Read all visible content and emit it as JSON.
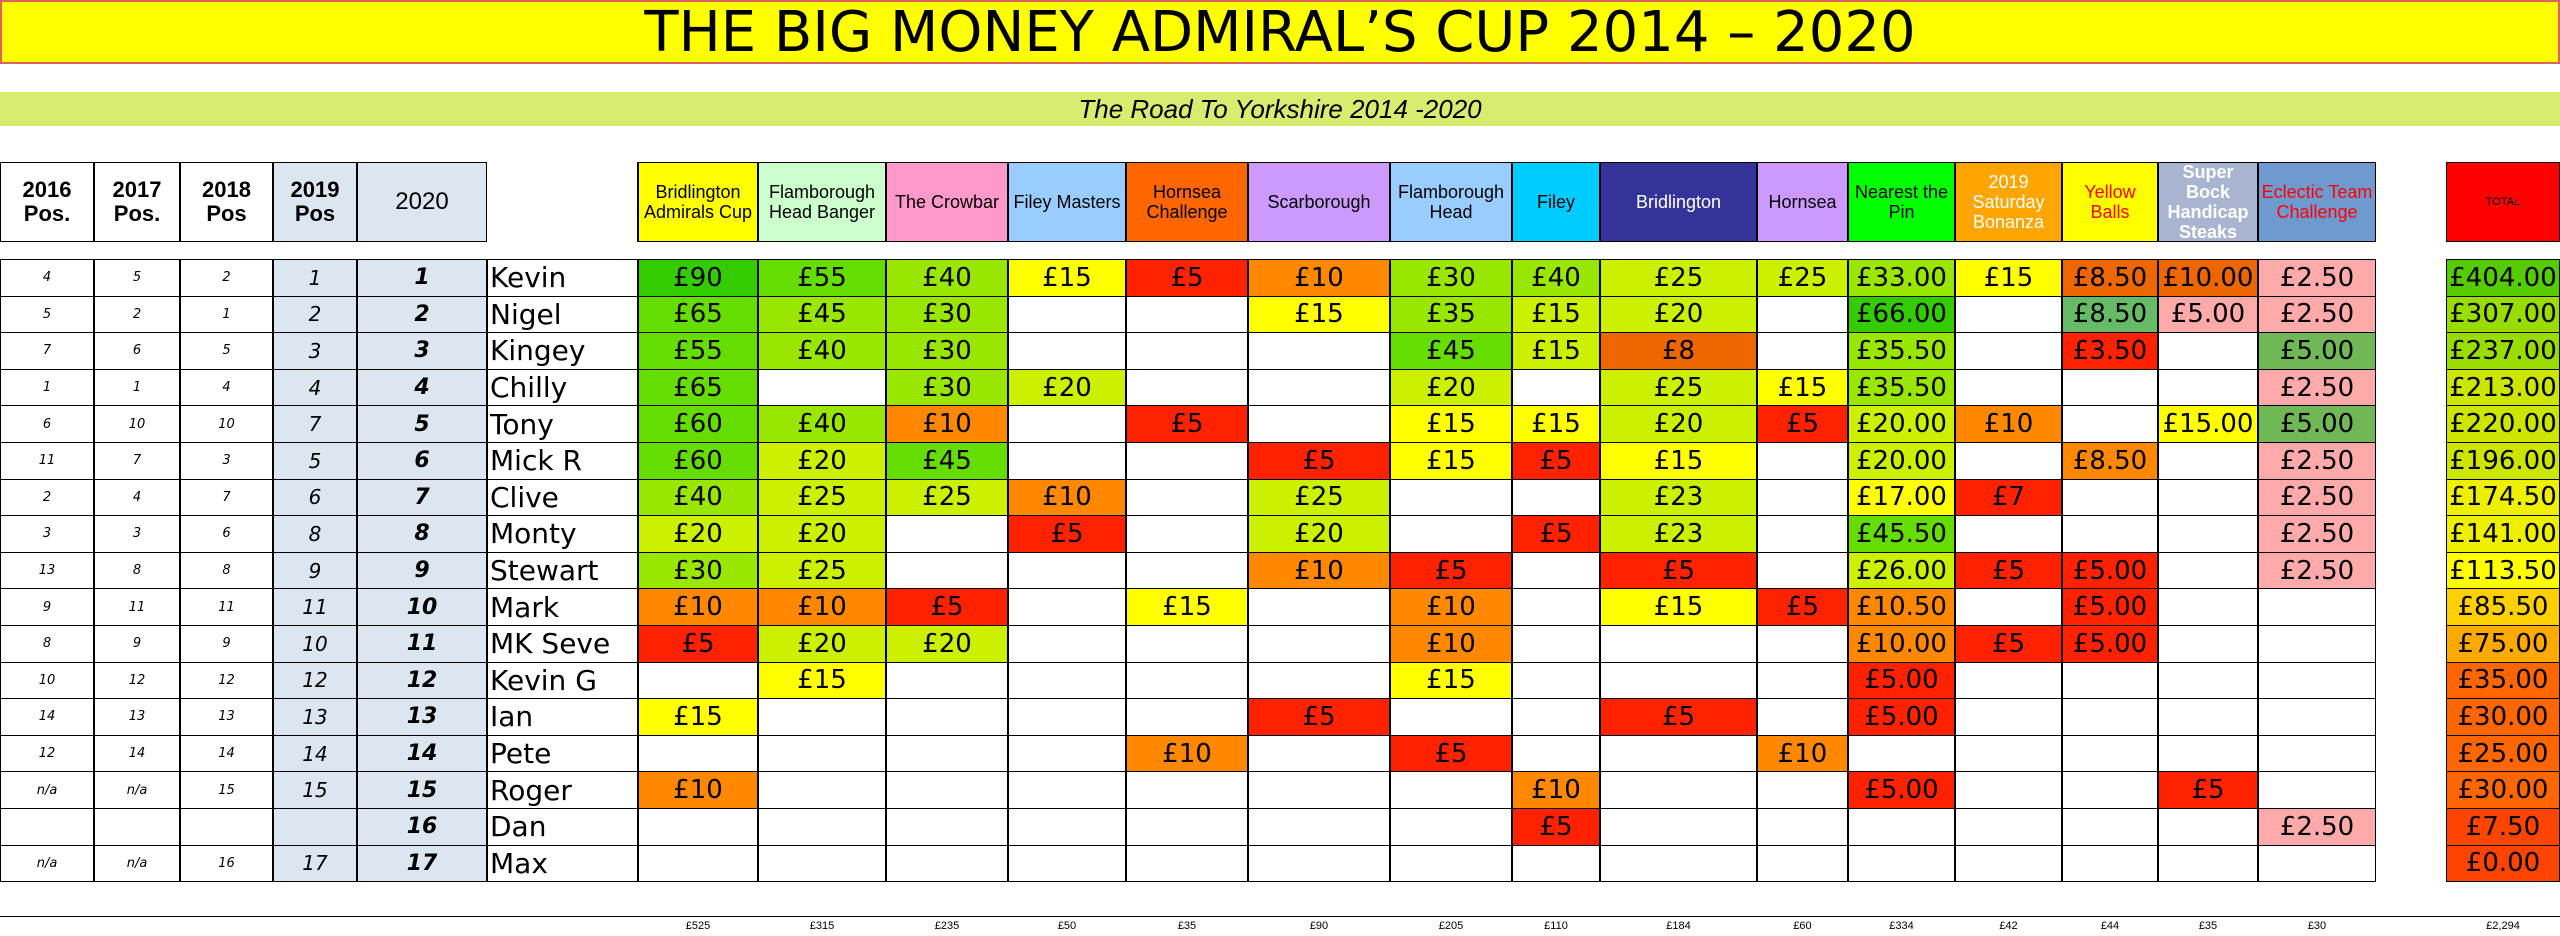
{
  "title": "THE BIG MONEY ADMIRAL’S CUP  2014 – 2020",
  "subtitle": "The Road To Yorkshire 2014 -2020",
  "pos_headers": [
    "2016 Pos.",
    "2017 Pos.",
    "2018 Pos",
    "2019 Pos",
    "2020"
  ],
  "events": [
    {
      "label": "Bridlington Admirals Cup",
      "bg": "#ffff00",
      "fg": "#000000"
    },
    {
      "label": "Flamborough Head Banger",
      "bg": "#ccffcc",
      "fg": "#000000"
    },
    {
      "label": "The Crowbar",
      "bg": "#ff99cc",
      "fg": "#000000"
    },
    {
      "label": "Filey Masters",
      "bg": "#99ccff",
      "fg": "#000000"
    },
    {
      "label": "Hornsea Challenge",
      "bg": "#ff6600",
      "fg": "#000000"
    },
    {
      "label": "Scarborough",
      "bg": "#cc99ff",
      "fg": "#000000"
    },
    {
      "label": "Flamborough Head",
      "bg": "#99ccff",
      "fg": "#000000"
    },
    {
      "label": "Filey",
      "bg": "#00ccff",
      "fg": "#000000"
    },
    {
      "label": "Bridlington",
      "bg": "#333399",
      "fg": "#ffffff"
    },
    {
      "label": "Hornsea",
      "bg": "#cc99ff",
      "fg": "#000000"
    },
    {
      "label": "Nearest the Pin",
      "bg": "#00ff00",
      "fg": "#000000"
    },
    {
      "label": "2019 Saturday Bonanza",
      "bg": "#ffa500",
      "fg": "#ffffff"
    },
    {
      "label": "Yellow Balls",
      "bg": "#ffff00",
      "fg": "#ff0000"
    },
    {
      "label": "Super Bock Handicap Steaks",
      "bg": "#a8b4d0",
      "fg": "#ffffff"
    },
    {
      "label": "Eclectic Team Challenge",
      "bg": "#6e9ad0",
      "fg": "#ff0000"
    }
  ],
  "total_label": "TOTAL",
  "total_header_bg": "#ff0000",
  "colors": {
    "g1": "#33cc00",
    "g2": "#66dd00",
    "g3": "#99e600",
    "g4": "#ccf000",
    "y": "#ffff00",
    "o": "#ff8800",
    "r": "#ff2200",
    "pk": "#ffaaaa",
    "mg": "#66bb66",
    "lg": "#70b855",
    "bo": "#ee6600",
    "t1": "#55cc00",
    "t2": "#99dd00",
    "t3": "#cce600",
    "t4": "#eef000",
    "t5": "#ffd000",
    "t6": "#ffaa00",
    "t7": "#ff8800",
    "t8": "#ff6600",
    "t9": "#ff4400",
    "pos_bg": "#dce6f0"
  },
  "rows": [
    {
      "p16": "4",
      "p17": "5",
      "p18": "2",
      "p19": "1",
      "cur": "1",
      "name": "Kevin",
      "cells": [
        [
          "£90",
          "g1"
        ],
        [
          "£55",
          "g2"
        ],
        [
          "£40",
          "g3"
        ],
        [
          "£15",
          "y"
        ],
        [
          "£5",
          "r"
        ],
        [
          "£10",
          "o"
        ],
        [
          "£30",
          "g3"
        ],
        [
          "£40",
          "g3"
        ],
        [
          "£25",
          "g4"
        ],
        [
          "£25",
          "g4"
        ],
        [
          "£33.00",
          "g3"
        ],
        [
          "£15",
          "y"
        ],
        [
          "£8.50",
          "bo"
        ],
        [
          "£10.00",
          "bo"
        ],
        [
          "£2.50",
          "pk"
        ]
      ],
      "total": [
        "£404.00",
        "t1"
      ]
    },
    {
      "p16": "5",
      "p17": "2",
      "p18": "1",
      "p19": "2",
      "cur": "2",
      "name": "Nigel",
      "cells": [
        [
          "£65",
          "g2"
        ],
        [
          "£45",
          "g3"
        ],
        [
          "£30",
          "g3"
        ],
        [
          "",
          ""
        ],
        [
          "",
          ""
        ],
        [
          "£15",
          "y"
        ],
        [
          "£35",
          "g3"
        ],
        [
          "£15",
          "g4"
        ],
        [
          "£20",
          "g4"
        ],
        [
          "",
          ""
        ],
        [
          "£66.00",
          "g1"
        ],
        [
          "",
          ""
        ],
        [
          "£8.50",
          "mg"
        ],
        [
          "£5.00",
          "pk"
        ],
        [
          "£2.50",
          "pk"
        ]
      ],
      "total": [
        "£307.00",
        "t2"
      ]
    },
    {
      "p16": "7",
      "p17": "6",
      "p18": "5",
      "p19": "3",
      "cur": "3",
      "name": "Kingey",
      "cells": [
        [
          "£55",
          "g2"
        ],
        [
          "£40",
          "g3"
        ],
        [
          "£30",
          "g3"
        ],
        [
          "",
          ""
        ],
        [
          "",
          ""
        ],
        [
          "",
          ""
        ],
        [
          "£45",
          "g2"
        ],
        [
          "£15",
          "g4"
        ],
        [
          "£8",
          "bo"
        ],
        [
          "",
          ""
        ],
        [
          "£35.50",
          "g3"
        ],
        [
          "",
          ""
        ],
        [
          "£3.50",
          "r"
        ],
        [
          "",
          ""
        ],
        [
          "£5.00",
          "lg"
        ]
      ],
      "total": [
        "£237.00",
        "t2"
      ]
    },
    {
      "p16": "1",
      "p17": "1",
      "p18": "4",
      "p19": "4",
      "cur": "4",
      "name": "Chilly",
      "cells": [
        [
          "£65",
          "g2"
        ],
        [
          "",
          ""
        ],
        [
          "£30",
          "g3"
        ],
        [
          "£20",
          "g4"
        ],
        [
          "",
          ""
        ],
        [
          "",
          ""
        ],
        [
          "£20",
          "g4"
        ],
        [
          "",
          ""
        ],
        [
          "£25",
          "g4"
        ],
        [
          "£15",
          "y"
        ],
        [
          "£35.50",
          "g3"
        ],
        [
          "",
          ""
        ],
        [
          "",
          ""
        ],
        [
          "",
          ""
        ],
        [
          "£2.50",
          "pk"
        ]
      ],
      "total": [
        "£213.00",
        "t3"
      ]
    },
    {
      "p16": "6",
      "p17": "10",
      "p18": "10",
      "p19": "7",
      "cur": "5",
      "name": "Tony",
      "cells": [
        [
          "£60",
          "g2"
        ],
        [
          "£40",
          "g3"
        ],
        [
          "£10",
          "o"
        ],
        [
          "",
          ""
        ],
        [
          "£5",
          "r"
        ],
        [
          "",
          ""
        ],
        [
          "£15",
          "y"
        ],
        [
          "£15",
          "y"
        ],
        [
          "£20",
          "g4"
        ],
        [
          "£5",
          "r"
        ],
        [
          "£20.00",
          "g4"
        ],
        [
          "£10",
          "o"
        ],
        [
          "",
          ""
        ],
        [
          "£15.00",
          "y"
        ],
        [
          "£5.00",
          "lg"
        ]
      ],
      "total": [
        "£220.00",
        "t3"
      ]
    },
    {
      "p16": "11",
      "p17": "7",
      "p18": "3",
      "p19": "5",
      "cur": "6",
      "name": "Mick R",
      "cells": [
        [
          "£60",
          "g2"
        ],
        [
          "£20",
          "g4"
        ],
        [
          "£45",
          "g2"
        ],
        [
          "",
          ""
        ],
        [
          "",
          ""
        ],
        [
          "£5",
          "r"
        ],
        [
          "£15",
          "y"
        ],
        [
          "£5",
          "r"
        ],
        [
          "£15",
          "y"
        ],
        [
          "",
          ""
        ],
        [
          "£20.00",
          "g4"
        ],
        [
          "",
          ""
        ],
        [
          "£8.50",
          "o"
        ],
        [
          "",
          ""
        ],
        [
          "£2.50",
          "pk"
        ]
      ],
      "total": [
        "£196.00",
        "t3"
      ]
    },
    {
      "p16": "2",
      "p17": "4",
      "p18": "7",
      "p19": "6",
      "cur": "7",
      "name": "Clive",
      "cells": [
        [
          "£40",
          "g3"
        ],
        [
          "£25",
          "g4"
        ],
        [
          "£25",
          "g4"
        ],
        [
          "£10",
          "o"
        ],
        [
          "",
          ""
        ],
        [
          "£25",
          "g4"
        ],
        [
          "",
          ""
        ],
        [
          "",
          ""
        ],
        [
          "£23",
          "g4"
        ],
        [
          "",
          ""
        ],
        [
          "£17.00",
          "y"
        ],
        [
          "£7",
          "r"
        ],
        [
          "",
          ""
        ],
        [
          "",
          ""
        ],
        [
          "£2.50",
          "pk"
        ]
      ],
      "total": [
        "£174.50",
        "t4"
      ]
    },
    {
      "p16": "3",
      "p17": "3",
      "p18": "6",
      "p19": "8",
      "cur": "8",
      "name": "Monty",
      "cells": [
        [
          "£20",
          "g4"
        ],
        [
          "£20",
          "g4"
        ],
        [
          "",
          ""
        ],
        [
          "£5",
          "r"
        ],
        [
          "",
          ""
        ],
        [
          "£20",
          "g4"
        ],
        [
          "",
          ""
        ],
        [
          "£5",
          "r"
        ],
        [
          "£23",
          "g4"
        ],
        [
          "",
          ""
        ],
        [
          "£45.50",
          "g2"
        ],
        [
          "",
          ""
        ],
        [
          "",
          ""
        ],
        [
          "",
          ""
        ],
        [
          "£2.50",
          "pk"
        ]
      ],
      "total": [
        "£141.00",
        "t4"
      ]
    },
    {
      "p16": "13",
      "p17": "8",
      "p18": "8",
      "p19": "9",
      "cur": "9",
      "name": "Stewart",
      "cells": [
        [
          "£30",
          "g3"
        ],
        [
          "£25",
          "g4"
        ],
        [
          "",
          ""
        ],
        [
          "",
          ""
        ],
        [
          "",
          ""
        ],
        [
          "£10",
          "o"
        ],
        [
          "£5",
          "r"
        ],
        [
          "",
          ""
        ],
        [
          "£5",
          "r"
        ],
        [
          "",
          ""
        ],
        [
          "£26.00",
          "g4"
        ],
        [
          "£5",
          "r"
        ],
        [
          "£5.00",
          "r"
        ],
        [
          "",
          ""
        ],
        [
          "£2.50",
          "pk"
        ]
      ],
      "total": [
        "£113.50",
        "y"
      ]
    },
    {
      "p16": "9",
      "p17": "11",
      "p18": "11",
      "p19": "11",
      "cur": "10",
      "name": "Mark",
      "cells": [
        [
          "£10",
          "o"
        ],
        [
          "£10",
          "o"
        ],
        [
          "£5",
          "r"
        ],
        [
          "",
          ""
        ],
        [
          "£15",
          "y"
        ],
        [
          "",
          ""
        ],
        [
          "£10",
          "o"
        ],
        [
          "",
          ""
        ],
        [
          "£15",
          "y"
        ],
        [
          "£5",
          "r"
        ],
        [
          "£10.50",
          "o"
        ],
        [
          "",
          ""
        ],
        [
          "£5.00",
          "r"
        ],
        [
          "",
          ""
        ],
        [
          "",
          ""
        ]
      ],
      "total": [
        "£85.50",
        "t5"
      ]
    },
    {
      "p16": "8",
      "p17": "9",
      "p18": "9",
      "p19": "10",
      "cur": "11",
      "name": "MK Seve",
      "cells": [
        [
          "£5",
          "r"
        ],
        [
          "£20",
          "g4"
        ],
        [
          "£20",
          "g4"
        ],
        [
          "",
          ""
        ],
        [
          "",
          ""
        ],
        [
          "",
          ""
        ],
        [
          "£10",
          "o"
        ],
        [
          "",
          ""
        ],
        [
          "",
          ""
        ],
        [
          "",
          ""
        ],
        [
          "£10.00",
          "o"
        ],
        [
          "£5",
          "r"
        ],
        [
          "£5.00",
          "r"
        ],
        [
          "",
          ""
        ],
        [
          "",
          ""
        ]
      ],
      "total": [
        "£75.00",
        "t6"
      ]
    },
    {
      "p16": "10",
      "p17": "12",
      "p18": "12",
      "p19": "12",
      "cur": "12",
      "name": "Kevin G",
      "cells": [
        [
          "",
          ""
        ],
        [
          "£15",
          "y"
        ],
        [
          "",
          ""
        ],
        [
          "",
          ""
        ],
        [
          "",
          ""
        ],
        [
          "",
          ""
        ],
        [
          "£15",
          "y"
        ],
        [
          "",
          ""
        ],
        [
          "",
          ""
        ],
        [
          "",
          ""
        ],
        [
          "£5.00",
          "r"
        ],
        [
          "",
          ""
        ],
        [
          "",
          ""
        ],
        [
          "",
          ""
        ],
        [
          "",
          ""
        ]
      ],
      "total": [
        "£35.00",
        "t8"
      ]
    },
    {
      "p16": "14",
      "p17": "13",
      "p18": "13",
      "p19": "13",
      "cur": "13",
      "name": "Ian",
      "cells": [
        [
          "£15",
          "y"
        ],
        [
          "",
          ""
        ],
        [
          "",
          ""
        ],
        [
          "",
          ""
        ],
        [
          "",
          ""
        ],
        [
          "£5",
          "r"
        ],
        [
          "",
          ""
        ],
        [
          "",
          ""
        ],
        [
          "£5",
          "r"
        ],
        [
          "",
          ""
        ],
        [
          "£5.00",
          "r"
        ],
        [
          "",
          ""
        ],
        [
          "",
          ""
        ],
        [
          "",
          ""
        ],
        [
          "",
          ""
        ]
      ],
      "total": [
        "£30.00",
        "t8"
      ]
    },
    {
      "p16": "12",
      "p17": "14",
      "p18": "14",
      "p19": "14",
      "cur": "14",
      "name": "Pete",
      "cells": [
        [
          "",
          ""
        ],
        [
          "",
          ""
        ],
        [
          "",
          ""
        ],
        [
          "",
          ""
        ],
        [
          "£10",
          "o"
        ],
        [
          "",
          ""
        ],
        [
          "£5",
          "r"
        ],
        [
          "",
          ""
        ],
        [
          "",
          ""
        ],
        [
          "£10",
          "o"
        ],
        [
          "",
          ""
        ],
        [
          "",
          ""
        ],
        [
          "",
          ""
        ],
        [
          "",
          ""
        ],
        [
          "",
          ""
        ]
      ],
      "total": [
        "£25.00",
        "t8"
      ]
    },
    {
      "p16": "n/a",
      "p17": "n/a",
      "p18": "15",
      "p19": "15",
      "cur": "15",
      "name": "Roger",
      "cells": [
        [
          "£10",
          "o"
        ],
        [
          "",
          ""
        ],
        [
          "",
          ""
        ],
        [
          "",
          ""
        ],
        [
          "",
          ""
        ],
        [
          "",
          ""
        ],
        [
          "",
          ""
        ],
        [
          "£10",
          "o"
        ],
        [
          "",
          ""
        ],
        [
          "",
          ""
        ],
        [
          "£5.00",
          "r"
        ],
        [
          "",
          ""
        ],
        [
          "",
          ""
        ],
        [
          "£5",
          "r"
        ],
        [
          "",
          ""
        ]
      ],
      "total": [
        "£30.00",
        "t8"
      ]
    },
    {
      "p16": "",
      "p17": "",
      "p18": "",
      "p19": "",
      "cur": "16",
      "name": "Dan",
      "cells": [
        [
          "",
          ""
        ],
        [
          "",
          ""
        ],
        [
          "",
          ""
        ],
        [
          "",
          ""
        ],
        [
          "",
          ""
        ],
        [
          "",
          ""
        ],
        [
          "",
          ""
        ],
        [
          "£5",
          "r"
        ],
        [
          "",
          ""
        ],
        [
          "",
          ""
        ],
        [
          "",
          ""
        ],
        [
          "",
          ""
        ],
        [
          "",
          ""
        ],
        [
          "",
          ""
        ],
        [
          "£2.50",
          "pk"
        ]
      ],
      "total": [
        "£7.50",
        "t9"
      ]
    },
    {
      "p16": "n/a",
      "p17": "n/a",
      "p18": "16",
      "p19": "17",
      "cur": "17",
      "name": "Max",
      "cells": [
        [
          "",
          ""
        ],
        [
          "",
          ""
        ],
        [
          "",
          ""
        ],
        [
          "",
          ""
        ],
        [
          "",
          ""
        ],
        [
          "",
          ""
        ],
        [
          "",
          ""
        ],
        [
          "",
          ""
        ],
        [
          "",
          ""
        ],
        [
          "",
          ""
        ],
        [
          "",
          ""
        ],
        [
          "",
          ""
        ],
        [
          "",
          ""
        ],
        [
          "",
          ""
        ],
        [
          "",
          ""
        ]
      ],
      "total": [
        "£0.00",
        "t9"
      ]
    }
  ],
  "event_totals": [
    "£525",
    "£315",
    "£235",
    "£50",
    "£35",
    "£90",
    "£205",
    "£110",
    "£184",
    "£60",
    "£334",
    "£42",
    "£44",
    "£35",
    "£30"
  ],
  "grand_total": "£2,294"
}
